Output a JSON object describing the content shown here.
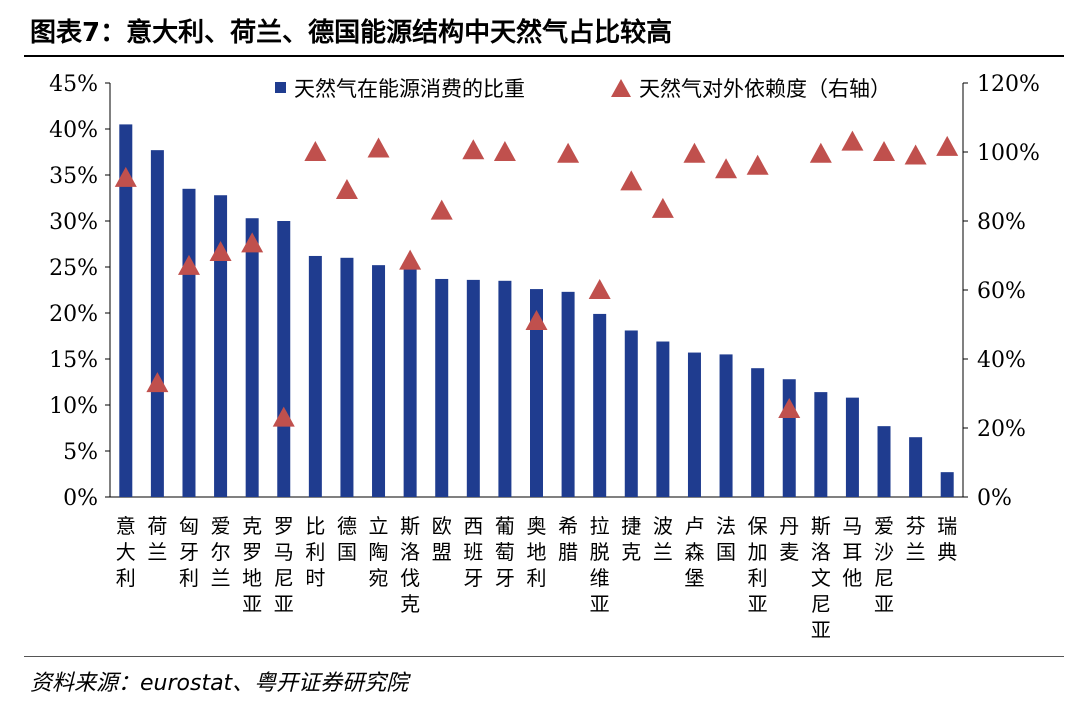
{
  "title": "图表7：意大利、荷兰、德国能源结构中天然气占比较高",
  "source": "资料来源：eurostat、粤开证券研究院",
  "chart_data": {
    "type": "bar",
    "title": "图表7：意大利、荷兰、德国能源结构中天然气占比较高",
    "categories": [
      "意大利",
      "荷兰",
      "匈牙利",
      "爱尔兰",
      "克罗地亚",
      "罗马尼亚",
      "比利时",
      "德国",
      "立陶宛",
      "斯洛伐克",
      "欧盟",
      "西班牙",
      "葡萄牙",
      "奥地利",
      "希腊",
      "拉脱维亚",
      "捷克",
      "波兰",
      "卢森堡",
      "法国",
      "保加利亚",
      "丹麦",
      "斯洛文尼亚",
      "马耳他",
      "爱沙尼亚",
      "芬兰",
      "瑞典"
    ],
    "series": [
      {
        "name": "天然气在能源消费的比重",
        "type": "bar",
        "axis": "left",
        "color": "#1f3c8f",
        "values": [
          40.5,
          37.7,
          33.5,
          32.8,
          30.3,
          30.0,
          26.2,
          26.0,
          25.2,
          25.2,
          23.7,
          23.6,
          23.5,
          22.6,
          22.3,
          19.9,
          18.1,
          16.9,
          15.7,
          15.5,
          14.0,
          12.8,
          11.4,
          10.8,
          7.7,
          6.5,
          2.7
        ]
      },
      {
        "name": "天然气对外依赖度（右轴）",
        "type": "scatter",
        "marker": "triangle",
        "axis": "right",
        "color": "#c0504d",
        "values": [
          92.5,
          33.0,
          67.0,
          71.0,
          73.5,
          23.0,
          100.0,
          89.0,
          101.0,
          68.5,
          83.0,
          100.5,
          100.0,
          51.0,
          99.5,
          60.0,
          91.5,
          83.5,
          99.5,
          95.0,
          96.0,
          25.5,
          99.5,
          103.0,
          100.0,
          99.0,
          101.5
        ]
      }
    ],
    "y_left": {
      "min": 0,
      "max": 45,
      "step": 5,
      "unit": "%"
    },
    "y_right": {
      "min": 0,
      "max": 120,
      "step": 20,
      "unit": "%"
    },
    "legend": [
      {
        "label": "天然气在能源消费的比重",
        "symbol": "square"
      },
      {
        "label": "天然气对外依赖度（右轴）",
        "symbol": "triangle"
      }
    ],
    "legend_position": "top-center"
  }
}
